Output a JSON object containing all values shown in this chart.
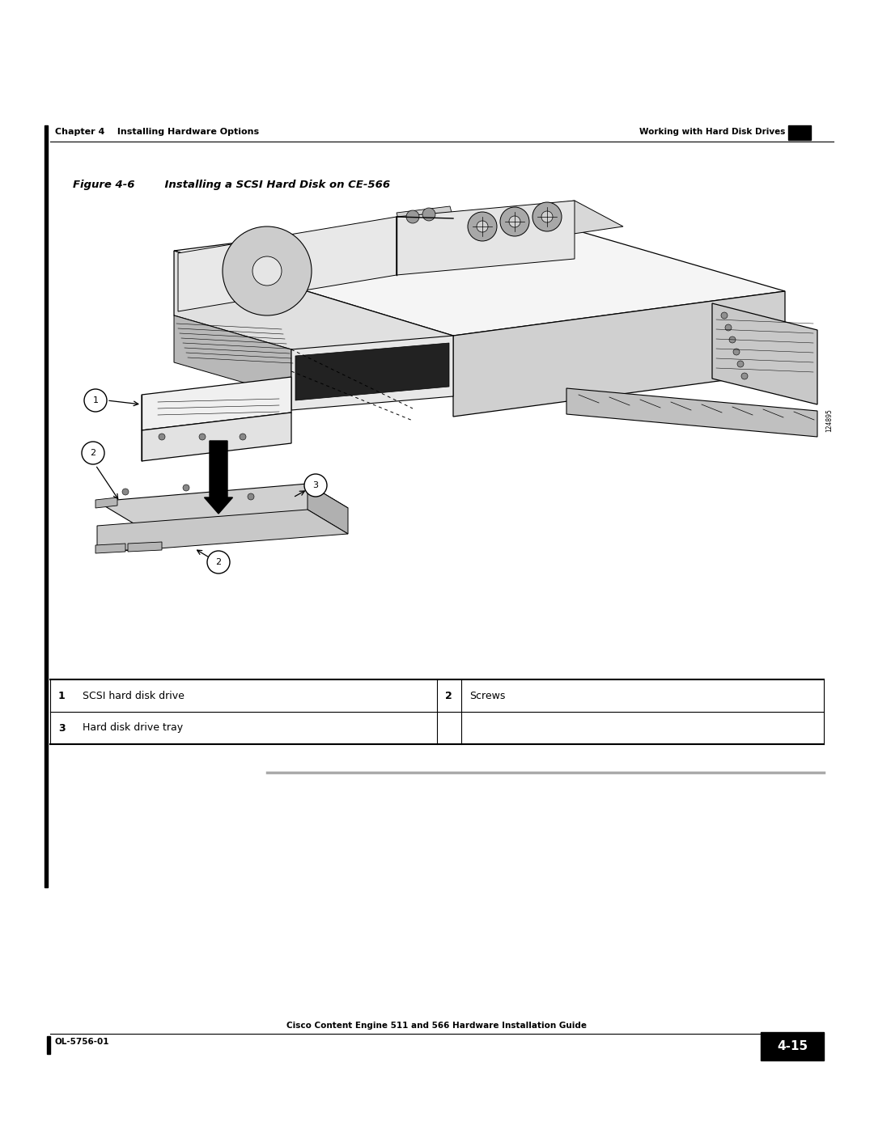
{
  "background_color": "#ffffff",
  "page_width": 10.8,
  "page_height": 13.97,
  "header_left_text": "Chapter 4    Installing Hardware Options",
  "header_right_text": "Working with Hard Disk Drives",
  "figure_title": "Figure 4-6        Installing a SCSI Hard Disk on CE-566",
  "table_items": [
    {
      "num": "1",
      "label": "SCSI hard disk drive",
      "col2_num": "2",
      "col2_label": "Screws"
    },
    {
      "num": "3",
      "label": "Hard disk drive tray",
      "col2_num": "",
      "col2_label": ""
    }
  ],
  "footer_center_text": "Cisco Content Engine 511 and 566 Hardware Installation Guide",
  "footer_left_text": "OL-5756-01",
  "footer_page_label": "4-15",
  "sidebar_label": "124895"
}
